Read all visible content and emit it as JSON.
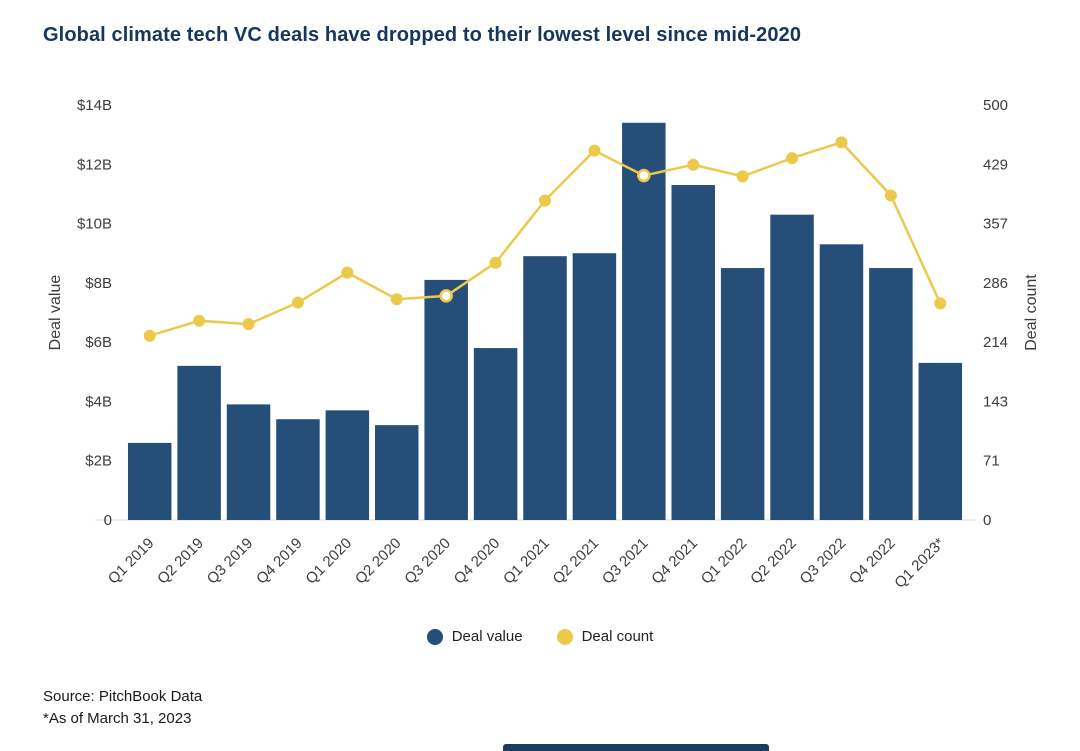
{
  "title": "Global climate tech VC deals have dropped to their lowest level since mid-2020",
  "legend": {
    "deal_value": "Deal value",
    "deal_count": "Deal count"
  },
  "source": {
    "line1": "Source: PitchBook Data",
    "line2": "*As of March 31, 2023"
  },
  "colors": {
    "bar": "#254e78",
    "line": "#ecc94b",
    "title": "#16365d"
  },
  "chart_data": {
    "type": "bar+line",
    "title": "Global climate tech VC deals have dropped to their lowest level since mid-2020",
    "categories": [
      "Q1 2019",
      "Q2 2019",
      "Q3 2019",
      "Q4 2019",
      "Q1 2020",
      "Q2 2020",
      "Q3 2020",
      "Q4 2020",
      "Q1 2021",
      "Q2 2021",
      "Q3 2021",
      "Q4 2021",
      "Q1 2022",
      "Q2 2022",
      "Q3 2022",
      "Q4 2022",
      "Q1 2023*"
    ],
    "series": [
      {
        "name": "Deal value",
        "type": "bar",
        "axis": "left",
        "unit": "$B",
        "values": [
          2.6,
          5.2,
          3.9,
          3.4,
          3.7,
          3.2,
          8.1,
          5.8,
          8.9,
          9.0,
          13.4,
          11.3,
          8.5,
          10.3,
          9.3,
          8.5,
          5.3
        ]
      },
      {
        "name": "Deal count",
        "type": "line",
        "axis": "right",
        "values": [
          222,
          240,
          236,
          262,
          298,
          266,
          270,
          310,
          385,
          445,
          415,
          428,
          414,
          436,
          455,
          391,
          261
        ],
        "highlight_indices": [
          6,
          10
        ]
      }
    ],
    "left_axis": {
      "label": "Deal value",
      "ticks": [
        "0",
        "$2B",
        "$4B",
        "$6B",
        "$8B",
        "$10B",
        "$12B",
        "$14B"
      ],
      "max": 14
    },
    "right_axis": {
      "label": "Deal count",
      "ticks": [
        "0",
        "71",
        "143",
        "214",
        "286",
        "357",
        "429",
        "500"
      ],
      "max": 500
    },
    "grid": false,
    "legend_position": "bottom"
  }
}
